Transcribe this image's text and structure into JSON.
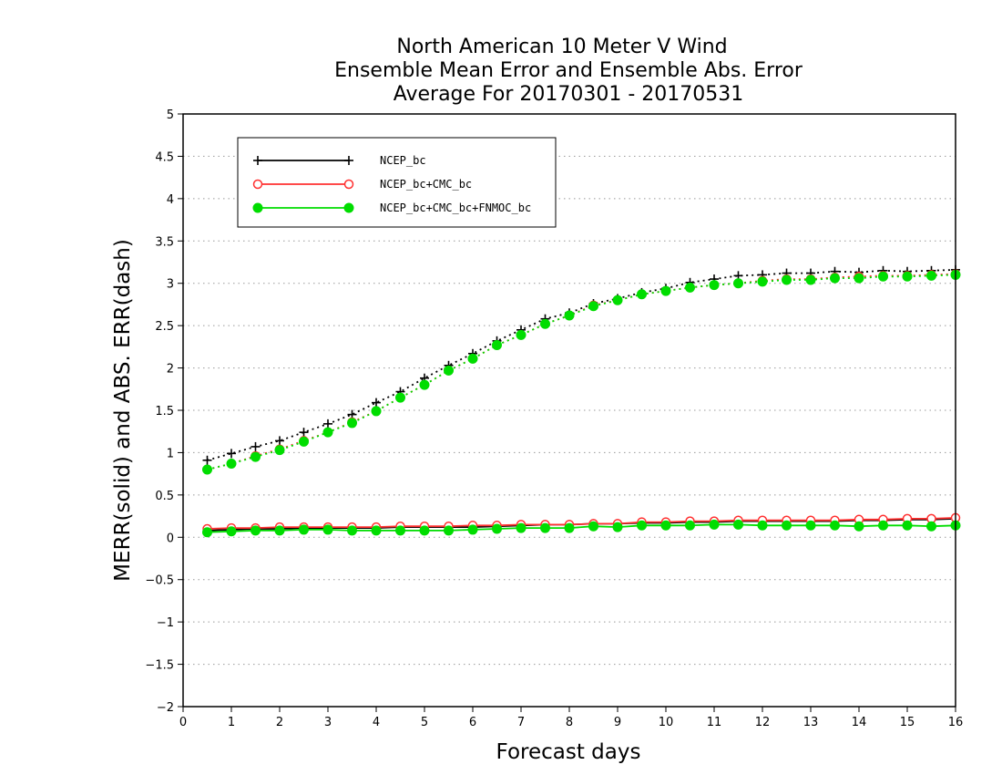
{
  "chart_data": {
    "type": "line",
    "title": [
      "North American 10 Meter V Wind",
      "Ensemble Mean Error and Ensemble Abs. Error",
      "Average For 20170301 - 20170531"
    ],
    "xlabel": "Forecast days",
    "ylabel": "MERR(solid) and ABS. ERR(dash)",
    "xlim": [
      0,
      16
    ],
    "ylim": [
      -2,
      5
    ],
    "xticks": [
      "0",
      "1",
      "2",
      "3",
      "4",
      "5",
      "6",
      "7",
      "8",
      "9",
      "10",
      "11",
      "12",
      "13",
      "14",
      "15",
      "16"
    ],
    "yticks": [
      "5",
      "4.5",
      "4",
      "3.5",
      "3",
      "2.5",
      "2",
      "1.5",
      "1",
      "0.5",
      "0",
      "−0.5",
      "−1",
      "−1.5",
      "−2"
    ],
    "grid": true,
    "legend_position": "top-left",
    "x": [
      0.5,
      1,
      1.5,
      2,
      2.5,
      3,
      3.5,
      4,
      4.5,
      5,
      5.5,
      6,
      6.5,
      7,
      7.5,
      8,
      8.5,
      9,
      9.5,
      10,
      10.5,
      11,
      11.5,
      12,
      12.5,
      13,
      13.5,
      14,
      14.5,
      15,
      15.5,
      16
    ],
    "series": [
      {
        "name": "NCEP_bc",
        "color": "#000000",
        "marker": "plus",
        "merr": [
          0.08,
          0.09,
          0.1,
          0.1,
          0.11,
          0.11,
          0.11,
          0.11,
          0.12,
          0.12,
          0.12,
          0.12,
          0.13,
          0.14,
          0.15,
          0.15,
          0.16,
          0.16,
          0.17,
          0.17,
          0.18,
          0.18,
          0.19,
          0.19,
          0.19,
          0.19,
          0.19,
          0.2,
          0.2,
          0.21,
          0.21,
          0.22
        ],
        "abs_err": [
          0.91,
          0.99,
          1.07,
          1.14,
          1.24,
          1.34,
          1.45,
          1.59,
          1.72,
          1.88,
          2.03,
          2.17,
          2.32,
          2.45,
          2.58,
          2.65,
          2.76,
          2.82,
          2.89,
          2.94,
          3.01,
          3.05,
          3.09,
          3.1,
          3.12,
          3.12,
          3.14,
          3.13,
          3.15,
          3.14,
          3.15,
          3.16
        ]
      },
      {
        "name": "NCEP_bc+CMC_bc",
        "color": "#ff3030",
        "marker": "open-circle",
        "merr": [
          0.1,
          0.11,
          0.11,
          0.12,
          0.12,
          0.12,
          0.12,
          0.12,
          0.13,
          0.13,
          0.13,
          0.14,
          0.14,
          0.15,
          0.15,
          0.15,
          0.16,
          0.16,
          0.18,
          0.18,
          0.19,
          0.19,
          0.2,
          0.2,
          0.2,
          0.2,
          0.2,
          0.21,
          0.21,
          0.22,
          0.22,
          0.23
        ],
        "abs_err": [
          0.8,
          0.87,
          0.96,
          1.04,
          1.14,
          1.24,
          1.36,
          1.49,
          1.65,
          1.8,
          1.97,
          2.11,
          2.27,
          2.39,
          2.52,
          2.62,
          2.74,
          2.8,
          2.87,
          2.91,
          2.95,
          2.98,
          3.0,
          3.03,
          3.05,
          3.05,
          3.07,
          3.08,
          3.09,
          3.09,
          3.1,
          3.11
        ]
      },
      {
        "name": "NCEP_bc+CMC_bc+FNMOC_bc",
        "color": "#00dd00",
        "marker": "filled-circle",
        "merr": [
          0.06,
          0.07,
          0.08,
          0.08,
          0.09,
          0.09,
          0.08,
          0.08,
          0.08,
          0.08,
          0.08,
          0.09,
          0.1,
          0.11,
          0.11,
          0.11,
          0.13,
          0.12,
          0.14,
          0.14,
          0.14,
          0.15,
          0.15,
          0.14,
          0.14,
          0.14,
          0.14,
          0.13,
          0.14,
          0.14,
          0.13,
          0.14
        ],
        "abs_err": [
          0.8,
          0.87,
          0.95,
          1.03,
          1.13,
          1.24,
          1.35,
          1.49,
          1.65,
          1.8,
          1.97,
          2.11,
          2.27,
          2.39,
          2.52,
          2.62,
          2.73,
          2.8,
          2.87,
          2.91,
          2.95,
          2.98,
          3.0,
          3.02,
          3.04,
          3.04,
          3.06,
          3.06,
          3.08,
          3.08,
          3.09,
          3.1
        ]
      }
    ]
  }
}
